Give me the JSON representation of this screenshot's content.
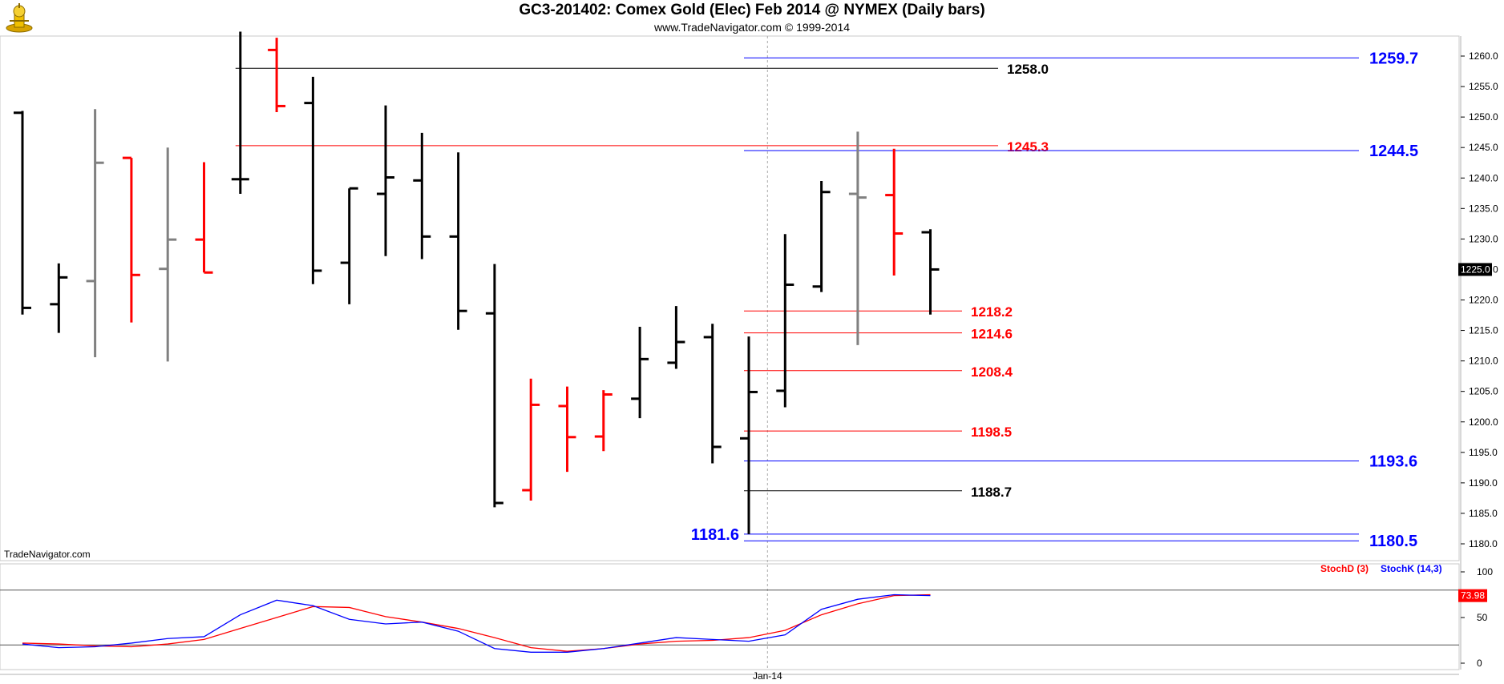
{
  "header": {
    "title": "GC3-201402:  Comex Gold (Elec) Feb 2014 @ NYMEX  (Daily bars)",
    "subtitle": "www.TradeNavigator.com © 1999-2014",
    "watermark": "TradeNavigator.com"
  },
  "colors": {
    "up_bar": "#000000",
    "down_bar": "#ff0000",
    "neutral_bar": "#808080",
    "blue_level": "#0000ff",
    "red_level": "#ff0000",
    "black_level": "#000000",
    "stoch_d": "#ff0000",
    "stoch_k": "#0000ff"
  },
  "chart_data": [
    {
      "type": "ohlc",
      "title": "GC3-201402:  Comex Gold (Elec) Feb 2014 @ NYMEX  (Daily bars)",
      "ylim": [
        1176.0,
        1264.0
      ],
      "y_ticks": [
        "1260.0",
        "1255.0",
        "1250.0",
        "1245.0",
        "1240.0",
        "1235.0",
        "1230.0",
        "1225.0",
        "1220.0",
        "1215.0",
        "1210.0",
        "1205.0",
        "1200.0",
        "1195.0",
        "1190.0",
        "1185.0",
        "1180.0"
      ],
      "last_price": "1225.0",
      "x_labels": [
        {
          "label": "Jan-14",
          "bar_index": 21
        }
      ],
      "bars": [
        {
          "open": 1250.7,
          "high": 1251.0,
          "low": 1217.6,
          "close": 1218.7,
          "color": "up"
        },
        {
          "open": 1219.3,
          "high": 1226.0,
          "low": 1214.6,
          "close": 1223.7,
          "color": "up"
        },
        {
          "open": 1223.1,
          "high": 1251.3,
          "low": 1210.6,
          "close": 1242.5,
          "color": "neutral"
        },
        {
          "open": 1243.3,
          "high": 1243.3,
          "low": 1216.3,
          "close": 1224.1,
          "color": "down"
        },
        {
          "open": 1225.1,
          "high": 1245.0,
          "low": 1209.9,
          "close": 1229.9,
          "color": "neutral"
        },
        {
          "open": 1229.9,
          "high": 1242.6,
          "low": 1224.5,
          "close": 1224.5,
          "color": "down"
        },
        {
          "open": 1239.8,
          "high": 1264.0,
          "low": 1237.4,
          "close": 1239.8,
          "color": "up"
        },
        {
          "open": 1261.0,
          "high": 1263.0,
          "low": 1250.8,
          "close": 1251.8,
          "color": "down"
        },
        {
          "open": 1252.3,
          "high": 1256.6,
          "low": 1222.6,
          "close": 1224.8,
          "color": "up"
        },
        {
          "open": 1226.1,
          "high": 1238.3,
          "low": 1219.3,
          "close": 1238.3,
          "color": "up"
        },
        {
          "open": 1237.4,
          "high": 1251.9,
          "low": 1227.2,
          "close": 1240.1,
          "color": "up"
        },
        {
          "open": 1239.6,
          "high": 1247.4,
          "low": 1226.7,
          "close": 1230.4,
          "color": "up"
        },
        {
          "open": 1230.4,
          "high": 1244.2,
          "low": 1215.1,
          "close": 1218.2,
          "color": "up"
        },
        {
          "open": 1217.8,
          "high": 1225.9,
          "low": 1186.0,
          "close": 1186.7,
          "color": "up"
        },
        {
          "open": 1188.8,
          "high": 1207.1,
          "low": 1187.1,
          "close": 1202.8,
          "color": "down"
        },
        {
          "open": 1202.6,
          "high": 1205.8,
          "low": 1191.8,
          "close": 1197.5,
          "color": "down"
        },
        {
          "open": 1197.6,
          "high": 1205.2,
          "low": 1195.2,
          "close": 1204.5,
          "color": "down"
        },
        {
          "open": 1203.8,
          "high": 1215.6,
          "low": 1200.6,
          "close": 1210.3,
          "color": "up"
        },
        {
          "open": 1209.7,
          "high": 1219.0,
          "low": 1208.7,
          "close": 1213.1,
          "color": "up"
        },
        {
          "open": 1213.9,
          "high": 1216.1,
          "low": 1193.2,
          "close": 1195.9,
          "color": "up"
        },
        {
          "open": 1197.3,
          "high": 1214.0,
          "low": 1181.6,
          "close": 1204.9,
          "color": "up"
        },
        {
          "open": 1205.1,
          "high": 1230.8,
          "low": 1202.4,
          "close": 1222.5,
          "color": "up"
        },
        {
          "open": 1222.2,
          "high": 1239.5,
          "low": 1221.3,
          "close": 1237.7,
          "color": "up"
        },
        {
          "open": 1237.4,
          "high": 1247.6,
          "low": 1212.6,
          "close": 1236.8,
          "color": "neutral"
        },
        {
          "open": 1237.2,
          "high": 1244.8,
          "low": 1224.0,
          "close": 1230.9,
          "color": "down"
        },
        {
          "open": 1231.1,
          "high": 1231.6,
          "low": 1217.6,
          "close": 1225.0,
          "color": "up"
        }
      ],
      "levels": [
        {
          "value": 1259.7,
          "label": "1259.7",
          "color": "blue",
          "from_bar": 20
        },
        {
          "value": 1258.0,
          "label": "1258.0",
          "color": "black",
          "from_bar": 6
        },
        {
          "value": 1245.3,
          "label": "1245.3",
          "color": "red",
          "from_bar": 6
        },
        {
          "value": 1244.5,
          "label": "1244.5",
          "color": "blue",
          "from_bar": 20
        },
        {
          "value": 1218.2,
          "label": "1218.2",
          "color": "red",
          "from_bar": 20
        },
        {
          "value": 1214.6,
          "label": "1214.6",
          "color": "red",
          "from_bar": 20
        },
        {
          "value": 1208.4,
          "label": "1208.4",
          "color": "red",
          "from_bar": 20
        },
        {
          "value": 1198.5,
          "label": "1198.5",
          "color": "red",
          "from_bar": 20
        },
        {
          "value": 1193.6,
          "label": "1193.6",
          "color": "blue",
          "from_bar": 20
        },
        {
          "value": 1188.7,
          "label": "1188.7",
          "color": "black",
          "from_bar": 20
        },
        {
          "value": 1181.6,
          "label": "1181.6",
          "color": "blue",
          "from_bar": 20
        },
        {
          "value": 1180.5,
          "label": "1180.5",
          "color": "blue",
          "from_bar": 20
        }
      ]
    },
    {
      "type": "line",
      "title": "",
      "ylim": [
        0,
        100
      ],
      "y_ticks": [
        "100",
        "50",
        "0"
      ],
      "overbought": 80,
      "oversold": 20,
      "last_value": "73.98",
      "series": [
        {
          "name": "StochD (3)",
          "color": "red",
          "values": [
            22,
            21,
            19,
            18,
            21,
            26,
            38,
            50,
            62,
            61,
            51,
            45,
            38,
            28,
            17,
            13,
            16,
            21,
            24,
            25,
            28,
            36,
            53,
            65,
            74,
            75
          ]
        },
        {
          "name": "StochK (14,3)",
          "color": "blue",
          "values": [
            21,
            17,
            18,
            22,
            27,
            29,
            53,
            69,
            63,
            48,
            43,
            45,
            35,
            16,
            12,
            12,
            16,
            22,
            28,
            26,
            24,
            31,
            59,
            70,
            75,
            74
          ]
        }
      ]
    }
  ]
}
